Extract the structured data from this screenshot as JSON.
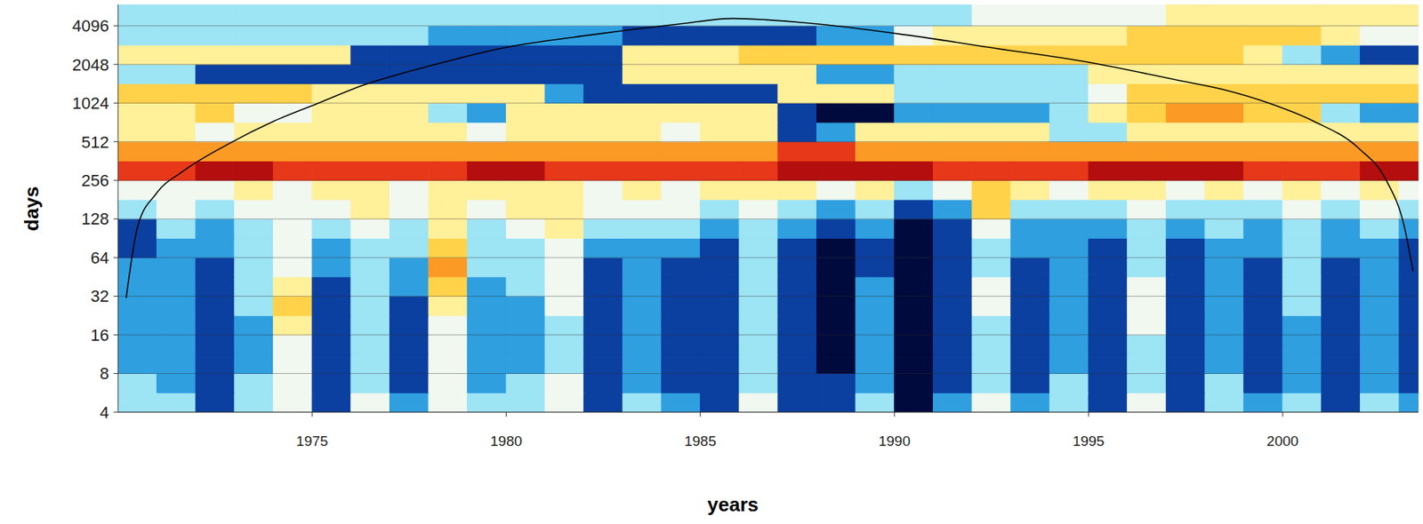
{
  "chart_data": {
    "type": "heatmap",
    "x_label": "years",
    "y_label": "days",
    "xlim": [
      1970,
      2003.5
    ],
    "xticks": [
      1975,
      1980,
      1985,
      1990,
      1995,
      2000
    ],
    "ylim": [
      4,
      6000
    ],
    "yticks": [
      4,
      8,
      16,
      32,
      64,
      128,
      256,
      512,
      1024,
      2048,
      4096
    ],
    "log": "y",
    "grid": true,
    "colors": [
      "#000a3c",
      "#0b3fa0",
      "#2f9fe0",
      "#9de4f5",
      "#f0f8f0",
      "#fff09a",
      "#ffd24a",
      "#fb9a24",
      "#e8381a",
      "#b40e0e"
    ],
    "cells": {
      "range": [
        0,
        9
      ],
      "x_edges": [
        1970,
        1971,
        1972,
        1973,
        1974,
        1975,
        1976,
        1977,
        1978,
        1979,
        1980,
        1981,
        1982,
        1983,
        1984,
        1985,
        1986,
        1987,
        1988,
        1989,
        1990,
        1991,
        1992,
        1993,
        1994,
        1995,
        1996,
        1997,
        1998,
        1999,
        2000,
        2001,
        2002,
        2003,
        2003.5
      ],
      "y_edges": [
        4,
        5.66,
        8,
        11.3,
        16,
        22.6,
        32,
        45.3,
        64,
        90.5,
        128,
        181,
        256,
        362,
        512,
        724,
        1024,
        1448,
        2048,
        2896,
        4096,
        6000
      ],
      "values": [
        [
          3,
          3,
          1,
          3,
          4,
          1,
          4,
          2,
          4,
          3,
          3,
          4,
          1,
          3,
          2,
          1,
          4,
          1,
          1,
          3,
          0,
          2,
          4,
          2,
          3,
          1,
          4,
          1,
          3,
          2,
          3,
          1,
          3,
          2
        ],
        [
          3,
          2,
          1,
          3,
          4,
          1,
          3,
          1,
          4,
          2,
          3,
          4,
          1,
          2,
          1,
          1,
          3,
          1,
          1,
          2,
          0,
          1,
          3,
          1,
          3,
          1,
          3,
          1,
          3,
          1,
          2,
          1,
          2,
          1
        ],
        [
          2,
          2,
          1,
          2,
          4,
          1,
          3,
          1,
          4,
          2,
          2,
          3,
          1,
          2,
          1,
          1,
          3,
          1,
          0,
          2,
          0,
          1,
          3,
          1,
          2,
          1,
          3,
          1,
          2,
          1,
          2,
          1,
          2,
          1
        ],
        [
          2,
          2,
          1,
          2,
          4,
          1,
          3,
          1,
          4,
          2,
          2,
          3,
          1,
          2,
          1,
          1,
          3,
          1,
          0,
          2,
          0,
          1,
          3,
          1,
          2,
          1,
          3,
          1,
          2,
          1,
          2,
          1,
          2,
          1
        ],
        [
          2,
          2,
          1,
          2,
          5,
          1,
          3,
          1,
          4,
          2,
          2,
          3,
          1,
          2,
          1,
          1,
          3,
          1,
          0,
          2,
          0,
          1,
          3,
          1,
          2,
          1,
          4,
          1,
          2,
          1,
          2,
          1,
          2,
          1
        ],
        [
          2,
          2,
          1,
          3,
          6,
          1,
          3,
          1,
          5,
          2,
          2,
          4,
          1,
          2,
          1,
          1,
          3,
          1,
          0,
          2,
          0,
          1,
          4,
          1,
          2,
          1,
          4,
          1,
          2,
          1,
          3,
          1,
          2,
          1
        ],
        [
          2,
          2,
          1,
          3,
          5,
          1,
          3,
          2,
          6,
          2,
          3,
          4,
          1,
          2,
          1,
          1,
          3,
          1,
          0,
          2,
          0,
          1,
          4,
          1,
          2,
          1,
          4,
          1,
          2,
          1,
          3,
          1,
          2,
          1
        ],
        [
          2,
          2,
          1,
          3,
          4,
          2,
          3,
          2,
          7,
          3,
          3,
          4,
          1,
          2,
          1,
          1,
          3,
          1,
          0,
          1,
          0,
          1,
          3,
          1,
          2,
          1,
          3,
          1,
          2,
          1,
          3,
          1,
          2,
          1
        ],
        [
          1,
          2,
          2,
          3,
          4,
          2,
          3,
          3,
          6,
          3,
          3,
          4,
          2,
          2,
          2,
          1,
          3,
          1,
          0,
          1,
          0,
          1,
          3,
          2,
          2,
          1,
          3,
          1,
          2,
          2,
          3,
          2,
          2,
          1
        ],
        [
          1,
          3,
          2,
          3,
          4,
          3,
          4,
          3,
          5,
          3,
          4,
          5,
          3,
          3,
          3,
          2,
          3,
          2,
          1,
          2,
          0,
          1,
          4,
          2,
          2,
          2,
          3,
          2,
          3,
          2,
          3,
          2,
          3,
          2
        ],
        [
          3,
          4,
          3,
          4,
          4,
          4,
          5,
          4,
          5,
          4,
          5,
          5,
          4,
          4,
          4,
          3,
          4,
          3,
          2,
          3,
          1,
          2,
          6,
          3,
          3,
          3,
          4,
          3,
          3,
          3,
          4,
          3,
          4,
          3
        ],
        [
          4,
          4,
          4,
          5,
          4,
          5,
          5,
          4,
          5,
          5,
          5,
          5,
          4,
          5,
          4,
          5,
          5,
          5,
          4,
          5,
          3,
          4,
          6,
          5,
          4,
          5,
          5,
          4,
          5,
          4,
          5,
          4,
          5,
          4
        ],
        [
          8,
          8,
          9,
          9,
          8,
          8,
          8,
          8,
          8,
          9,
          9,
          8,
          8,
          8,
          8,
          8,
          8,
          9,
          9,
          9,
          9,
          8,
          8,
          8,
          8,
          9,
          9,
          9,
          9,
          8,
          8,
          8,
          9,
          9
        ],
        [
          7,
          7,
          7,
          7,
          7,
          7,
          7,
          7,
          7,
          7,
          7,
          7,
          7,
          7,
          7,
          7,
          7,
          8,
          8,
          7,
          7,
          7,
          7,
          7,
          7,
          7,
          7,
          7,
          7,
          7,
          7,
          7,
          7,
          7
        ],
        [
          5,
          5,
          4,
          5,
          5,
          5,
          5,
          5,
          5,
          4,
          5,
          5,
          5,
          5,
          4,
          5,
          5,
          1,
          2,
          5,
          5,
          5,
          5,
          5,
          3,
          3,
          5,
          5,
          5,
          5,
          5,
          5,
          5,
          5
        ],
        [
          5,
          5,
          6,
          4,
          4,
          5,
          5,
          5,
          3,
          2,
          5,
          5,
          5,
          5,
          5,
          5,
          5,
          1,
          0,
          0,
          2,
          2,
          2,
          2,
          3,
          5,
          6,
          7,
          7,
          6,
          6,
          3,
          2,
          2
        ],
        [
          6,
          6,
          6,
          6,
          6,
          5,
          5,
          5,
          5,
          5,
          5,
          2,
          1,
          1,
          1,
          1,
          1,
          5,
          5,
          5,
          3,
          3,
          3,
          3,
          3,
          4,
          6,
          6,
          6,
          6,
          6,
          6,
          6,
          6
        ],
        [
          3,
          3,
          1,
          1,
          1,
          1,
          1,
          1,
          1,
          1,
          1,
          1,
          1,
          5,
          5,
          5,
          5,
          5,
          2,
          2,
          3,
          3,
          3,
          3,
          3,
          5,
          5,
          5,
          5,
          5,
          5,
          5,
          5,
          5
        ],
        [
          5,
          5,
          5,
          5,
          5,
          5,
          1,
          1,
          1,
          1,
          1,
          1,
          1,
          5,
          5,
          5,
          6,
          6,
          6,
          6,
          6,
          6,
          6,
          6,
          6,
          6,
          6,
          6,
          6,
          5,
          3,
          2,
          1,
          1
        ],
        [
          3,
          3,
          3,
          3,
          3,
          3,
          3,
          3,
          2,
          2,
          2,
          2,
          2,
          1,
          1,
          1,
          1,
          1,
          2,
          2,
          4,
          5,
          5,
          5,
          5,
          5,
          6,
          6,
          6,
          6,
          6,
          5,
          4,
          4
        ],
        [
          3,
          3,
          3,
          3,
          3,
          3,
          3,
          3,
          3,
          3,
          3,
          3,
          3,
          3,
          3,
          3,
          3,
          3,
          3,
          3,
          3,
          3,
          4,
          4,
          4,
          4,
          4,
          5,
          5,
          5,
          5,
          5,
          5,
          5
        ]
      ]
    },
    "line": {
      "type": "line",
      "color": "#000000",
      "x": [
        1970.21,
        1970.51,
        1970.98,
        1971.68,
        1972.84,
        1974.01,
        1975.17,
        1976.34,
        1977.5,
        1978.67,
        1979.83,
        1982.16,
        1984.49,
        1985.84,
        1987.99,
        1990.32,
        1992.65,
        1994.98,
        1997.31,
        1998.47,
        1999.64,
        2000.8,
        2001.97,
        2002.67,
        2003.13,
        2003.36
      ],
      "y": [
        31,
        113,
        201,
        302,
        491,
        739,
        1024,
        1418,
        1808,
        2240,
        2720,
        3470,
        4240,
        4670,
        4240,
        3470,
        2720,
        2134,
        1540,
        1305,
        1024,
        739,
        452,
        256,
        113,
        50
      ]
    }
  }
}
